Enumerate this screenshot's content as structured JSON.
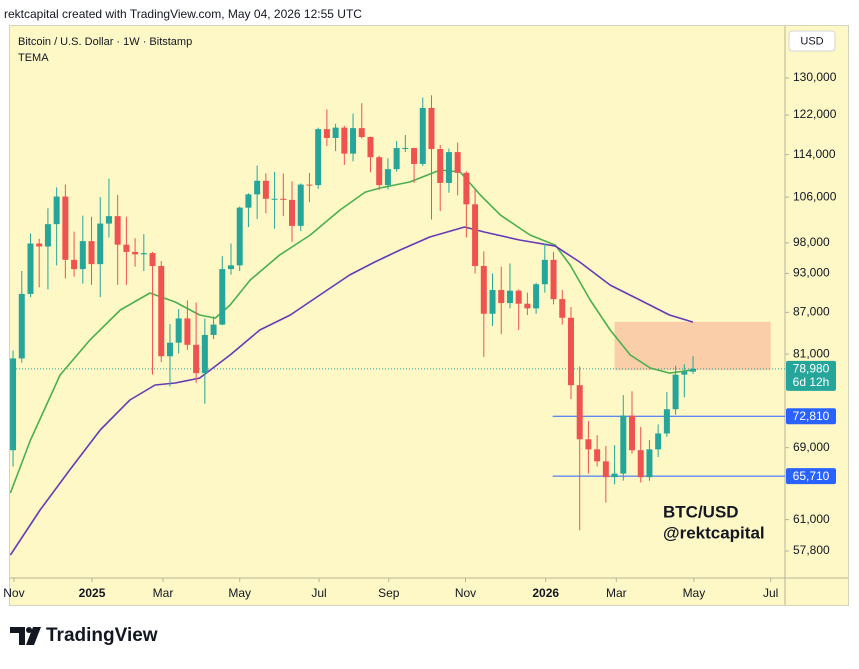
{
  "header": "rektcapital created with TradingView.com, May 04, 2026 12:55 UTC",
  "brand": "TradingView",
  "chart_data": {
    "type": "candlestick",
    "title": "Bitcoin / U.S. Dollar · 1W · Bitstamp",
    "indicator": "TEMA",
    "currency": "USD",
    "annotation": [
      "BTC/USD",
      "@rektcapital"
    ],
    "up_color": "#26a69a",
    "down_color": "#ef5350",
    "log_y": true,
    "xlim": [
      -0.35,
      88.55
    ],
    "ylim": [
      55190,
      142360
    ],
    "xticks": [
      {
        "value": 0.1,
        "label": "Nov"
      },
      {
        "value": 9.06,
        "label": "2025"
      },
      {
        "value": 17.2,
        "label": "Mar"
      },
      {
        "value": 26.0,
        "label": "May"
      },
      {
        "value": 35.1,
        "label": "Jul"
      },
      {
        "value": 43.1,
        "label": "Sep"
      },
      {
        "value": 51.9,
        "label": "Nov"
      },
      {
        "value": 61.1,
        "label": "2026"
      },
      {
        "value": 69.2,
        "label": "Mar"
      },
      {
        "value": 78.1,
        "label": "May"
      },
      {
        "value": 86.9,
        "label": "Jul"
      }
    ],
    "yticks": [
      {
        "value": 57800,
        "label": "57,800"
      },
      {
        "value": 61000,
        "label": "61,000"
      },
      {
        "value": 69000,
        "label": "69,000"
      },
      {
        "value": 81000,
        "label": "81,000"
      },
      {
        "value": 87000,
        "label": "87,000"
      },
      {
        "value": 93000,
        "label": "93,000"
      },
      {
        "value": 98000,
        "label": "98,000"
      },
      {
        "value": 106000,
        "label": "106,000"
      },
      {
        "value": 114000,
        "label": "114,000"
      },
      {
        "value": 122000,
        "label": "122,000"
      },
      {
        "value": 130000,
        "label": "130,000"
      }
    ],
    "open": [
      68700,
      80400,
      89800,
      97900,
      97400,
      101200,
      106100,
      95200,
      93700,
      98300,
      94500,
      101300,
      102600,
      97700,
      96500,
      96100,
      96300,
      94200,
      80700,
      82600,
      86100,
      82300,
      78400,
      83700,
      85200,
      93700,
      94300,
      104100,
      106500,
      109000,
      105700,
      105700,
      105500,
      100900,
      108300,
      108200,
      119100,
      117300,
      119400,
      114200,
      119300,
      117500,
      113500,
      108200,
      111200,
      115300,
      115300,
      112200,
      123500,
      115100,
      108600,
      114500,
      110500,
      104700,
      94200,
      86800,
      90400,
      88400,
      90300,
      88300,
      87600,
      91300,
      95200,
      89000,
      86200,
      76800,
      70000,
      68800,
      67400,
      65600,
      66000,
      72900,
      68700,
      65600,
      68800,
      70700,
      73700,
      78200,
      78600
    ],
    "high": [
      81500,
      93400,
      99600,
      98700,
      104000,
      107800,
      108300,
      99900,
      102700,
      102500,
      106000,
      109400,
      106400,
      102500,
      98800,
      99500,
      96500,
      95000,
      85300,
      87500,
      88800,
      88500,
      86100,
      86400,
      95800,
      97900,
      104300,
      106700,
      111900,
      110400,
      110700,
      110400,
      108900,
      108500,
      110500,
      119400,
      123200,
      120200,
      119800,
      122300,
      124500,
      117600,
      113800,
      113300,
      116700,
      117900,
      115400,
      125700,
      126200,
      115900,
      115200,
      116400,
      110800,
      107500,
      96600,
      93000,
      94100,
      94600,
      90500,
      90000,
      91500,
      97900,
      96500,
      90400,
      87800,
      79300,
      72200,
      70500,
      69200,
      69300,
      75500,
      76000,
      71500,
      69900,
      71800,
      75900,
      79400,
      79600,
      80700
    ],
    "low": [
      66800,
      79800,
      89300,
      90800,
      90500,
      94300,
      92200,
      92500,
      91400,
      91200,
      89300,
      98900,
      91200,
      91200,
      94100,
      93400,
      78200,
      79900,
      76600,
      81100,
      81600,
      77100,
      74400,
      83100,
      85100,
      92800,
      93400,
      100700,
      102100,
      103100,
      100400,
      102600,
      98200,
      100000,
      105100,
      107500,
      115700,
      114700,
      112000,
      112700,
      117200,
      110600,
      107300,
      107400,
      110700,
      114500,
      108600,
      111800,
      102000,
      103500,
      106800,
      106300,
      98900,
      93000,
      80600,
      85000,
      83800,
      87600,
      84400,
      86600,
      86800,
      90000,
      88200,
      85200,
      75000,
      59900,
      66000,
      66800,
      62800,
      64800,
      65200,
      68300,
      65000,
      65200,
      67900,
      70300,
      73000,
      75200,
      78300
    ],
    "close": [
      80400,
      89800,
      97900,
      97400,
      101200,
      106100,
      95200,
      93700,
      98300,
      94500,
      101300,
      102600,
      97700,
      96500,
      96100,
      96300,
      94200,
      80700,
      82600,
      86100,
      82300,
      78400,
      83700,
      85200,
      93700,
      94300,
      104100,
      106500,
      109000,
      105700,
      105700,
      105500,
      100900,
      108300,
      108200,
      119100,
      117300,
      119400,
      114200,
      119300,
      117500,
      113500,
      108200,
      111200,
      115300,
      115300,
      112200,
      123500,
      115100,
      108600,
      114500,
      110500,
      104700,
      94200,
      86800,
      90400,
      88400,
      90300,
      88300,
      87600,
      91300,
      95200,
      89000,
      86200,
      76800,
      70000,
      68800,
      67400,
      65600,
      66000,
      72900,
      68700,
      65600,
      68800,
      70700,
      73700,
      78200,
      78600,
      78980
    ],
    "series": [
      {
        "color": "#4caf50",
        "x": [
          -0.3,
          2.0,
          5.4,
          8.8,
          12.3,
          15.7,
          18.6,
          21.4,
          23.2,
          24.9,
          27.2,
          30.6,
          34.1,
          37.5,
          40.4,
          42.1,
          45.5,
          49.0,
          51.3,
          53.6,
          55.9,
          59.3,
          62.2,
          63.9,
          66.2,
          68.5,
          70.8,
          73.1,
          75.3,
          78.0
        ],
        "values": [
          63840,
          69910,
          78150,
          82970,
          87350,
          89940,
          88560,
          86610,
          86160,
          88110,
          91960,
          96000,
          99330,
          103680,
          106920,
          107660,
          108780,
          111040,
          110650,
          106380,
          102790,
          99330,
          97640,
          94360,
          88860,
          84410,
          80870,
          79090,
          78410,
          78820
        ]
      },
      {
        "color": "#673ab7",
        "x": [
          -0.3,
          3.1,
          6.5,
          10.0,
          13.4,
          16.3,
          18.6,
          21.4,
          24.9,
          28.3,
          31.8,
          35.2,
          38.6,
          41.5,
          44.4,
          47.8,
          51.8,
          54.1,
          58.1,
          62.2,
          65.0,
          68.5,
          71.9,
          75.3,
          78.0
        ],
        "values": [
          57410,
          62010,
          66410,
          71120,
          74870,
          76820,
          77080,
          77740,
          80870,
          84410,
          86610,
          89630,
          92750,
          94840,
          96820,
          98990,
          100710,
          99840,
          98490,
          97470,
          94840,
          91170,
          88860,
          86610,
          85570
        ]
      }
    ],
    "levels": {
      "values": [
        72810,
        65710
      ],
      "value_labels": [
        "72,810",
        "65,710"
      ],
      "x_start": 61.9,
      "color": "#2962ff"
    },
    "zone": {
      "x": [
        69.0,
        86.9
      ],
      "y": [
        78800,
        85600
      ],
      "color": "#f9c7a3"
    },
    "last": {
      "value": 78980,
      "value_label": "78,980",
      "countdown": "6d 12h",
      "color": "#26a69a"
    }
  }
}
